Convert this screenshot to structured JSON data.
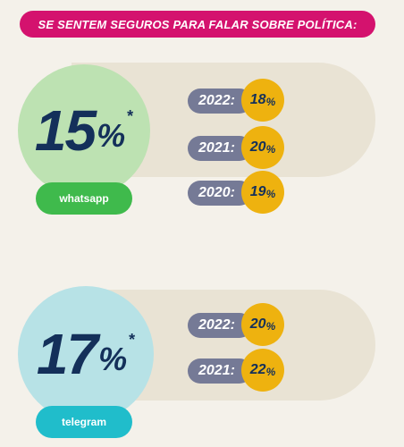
{
  "header": {
    "title": "SE SENTEM SEGUROS PARA FALAR SOBRE POLÍTICA:"
  },
  "colors": {
    "header_bg": "#d4126e",
    "whatsapp_circle": "#bde2b2",
    "whatsapp_badge": "#3fba4c",
    "telegram_circle": "#b7e2e6",
    "telegram_badge": "#20bdcb",
    "year_pill": "#757a96",
    "value_circle": "#eeb20f",
    "text_dark": "#14305a"
  },
  "whatsapp": {
    "number": "15",
    "percent": "%",
    "asterisk": "*",
    "label": "whatsapp",
    "years": [
      {
        "year": "2022:",
        "value": "18",
        "pct": "%"
      },
      {
        "year": "2021:",
        "value": "20",
        "pct": "%"
      },
      {
        "year": "2020:",
        "value": "19",
        "pct": "%"
      }
    ]
  },
  "telegram": {
    "number": "17",
    "percent": "%",
    "asterisk": "*",
    "label": "telegram",
    "years": [
      {
        "year": "2022:",
        "value": "20",
        "pct": "%"
      },
      {
        "year": "2021:",
        "value": "22",
        "pct": "%"
      }
    ]
  }
}
